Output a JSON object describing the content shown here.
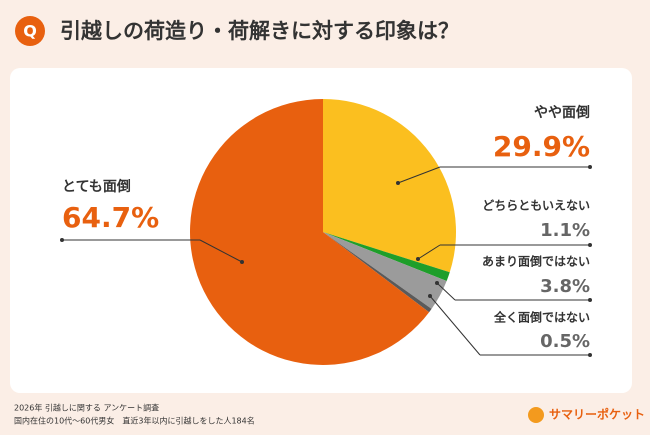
{
  "chart_data": {
    "type": "pie",
    "badge": "Q",
    "title": "引越しの荷造り・荷解きに対する印象は？",
    "categories": [
      "やや面倒",
      "どちらともいえない",
      "あまり面倒ではない",
      "全く面倒ではない",
      "とても面倒"
    ],
    "values": [
      29.9,
      1.1,
      3.8,
      0.5,
      64.7
    ],
    "value_labels": [
      "29.9%",
      "1.1%",
      "3.8%",
      "0.5%",
      "64.7%"
    ],
    "colors": [
      "#fbbf1f",
      "#1e9e2a",
      "#9b9b9b",
      "#5a5a5a",
      "#e8600f"
    ],
    "notes": [
      "2026年  引越しに関する アンケート調査",
      "国内在住の10代～60代男女　直近3年以内に引越しをした人184名"
    ],
    "brand": "サマリーポケット"
  }
}
